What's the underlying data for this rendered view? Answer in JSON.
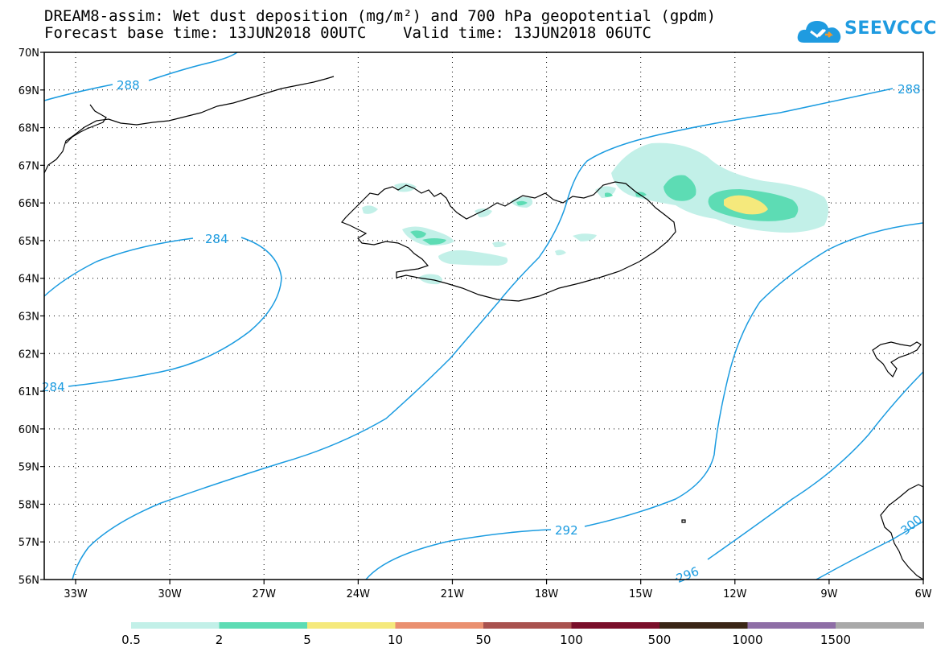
{
  "title_line1": "DREAM8-assim: Wet dust deposition (mg/m²) and 700 hPa geopotential (gpdm)",
  "title_line2": "Forecast base time: 13JUN2018 00UTC    Valid time: 13JUN2018 06UTC",
  "logo_text": "SEEVCCC",
  "logo_icon": "cloud-icon",
  "map": {
    "lon_range": [
      -34,
      -6
    ],
    "lat_range": [
      56,
      70
    ],
    "lon_ticks": [
      -33,
      -30,
      -27,
      -24,
      -21,
      -18,
      -15,
      -12,
      -9,
      -6
    ],
    "lon_labels": [
      "33W",
      "30W",
      "27W",
      "24W",
      "21W",
      "18W",
      "15W",
      "12W",
      "9W",
      "6W"
    ],
    "lat_ticks": [
      70,
      69,
      68,
      67,
      66,
      65,
      64,
      63,
      62,
      61,
      60,
      59,
      58,
      57,
      56
    ],
    "lat_labels": [
      "70N",
      "69N",
      "68N",
      "67N",
      "66N",
      "65N",
      "64N",
      "63N",
      "62N",
      "61N",
      "60N",
      "59N",
      "58N",
      "57N",
      "56N"
    ],
    "grid": "dotted"
  },
  "contours": [
    {
      "label": "288",
      "color": "#1a9be0"
    },
    {
      "label": "284",
      "color": "#1a9be0"
    },
    {
      "label": "292",
      "color": "#1a9be0"
    },
    {
      "label": "296",
      "color": "#1a9be0"
    },
    {
      "label": "300",
      "color": "#1a9be0"
    }
  ],
  "contour_labels": {
    "c288_nw": "288",
    "c288_ne": "288",
    "c284_top": "284",
    "c284_left": "284",
    "c292": "292",
    "c296": "296",
    "c300": "300"
  },
  "legend": {
    "colors": [
      "#c2f0e8",
      "#5ddcb4",
      "#f5e97c",
      "#ea9070",
      "#a9524f",
      "#7a0f2a",
      "#3a2616",
      "#8e6ea6",
      "#a9a9a9"
    ],
    "labels": [
      "0.5",
      "2",
      "5",
      "10",
      "50",
      "100",
      "500",
      "1000",
      "1500"
    ]
  }
}
